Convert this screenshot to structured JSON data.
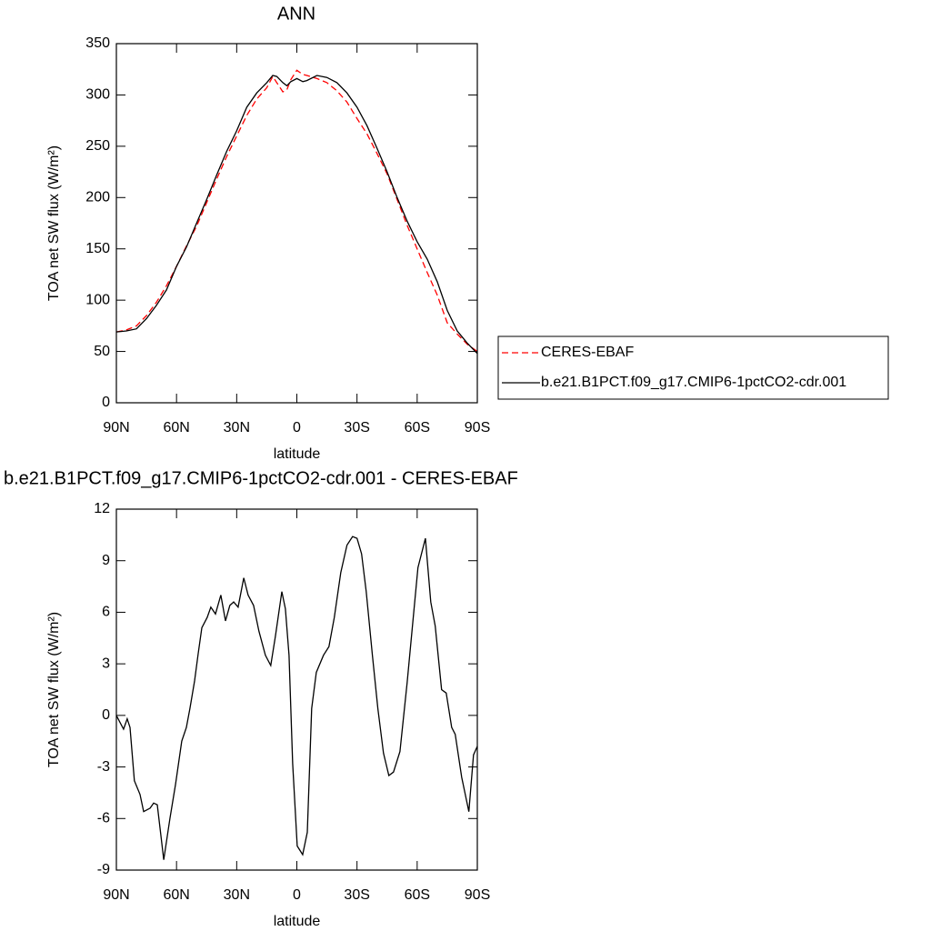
{
  "chart_data": [
    {
      "type": "line",
      "title": "ANN",
      "xlabel": "latitude",
      "ylabel": "TOA net SW flux (W/m²)",
      "x": [
        90,
        85,
        80,
        75,
        70,
        65,
        60,
        55,
        50,
        45,
        40,
        35,
        30,
        25,
        20,
        15,
        12,
        10,
        7,
        5,
        3,
        0,
        -3,
        -5,
        -10,
        -15,
        -20,
        -25,
        -30,
        -35,
        -40,
        -45,
        -50,
        -55,
        -60,
        -65,
        -70,
        -75,
        -80,
        -85,
        -90
      ],
      "series": [
        {
          "name": "CERES-EBAF",
          "color": "#ff0000",
          "linestyle": "dashed",
          "values": [
            69,
            71,
            75,
            85,
            98,
            114,
            133,
            153,
            172,
            195,
            218,
            240,
            260,
            280,
            296,
            307,
            318,
            312,
            303,
            305,
            315,
            324,
            320,
            319,
            316,
            312,
            304,
            293,
            277,
            262,
            243,
            223,
            198,
            173,
            150,
            127,
            105,
            78,
            67,
            57,
            50
          ]
        },
        {
          "name": "b.e21.B1PCT.f09_g17.CMIP6-1pctCO2-cdr.001",
          "color": "#000000",
          "linestyle": "solid",
          "values": [
            69,
            70,
            72,
            82,
            95,
            110,
            133,
            152,
            175,
            198,
            222,
            245,
            265,
            288,
            302,
            312,
            319,
            318,
            312,
            309,
            313,
            316,
            313,
            314,
            319,
            317,
            312,
            302,
            288,
            270,
            248,
            225,
            200,
            177,
            157,
            140,
            118,
            90,
            70,
            58,
            48
          ]
        }
      ],
      "xlim": [
        90,
        -90
      ],
      "xticks": [
        {
          "value": 90,
          "label": "90N"
        },
        {
          "value": 60,
          "label": "60N"
        },
        {
          "value": 30,
          "label": "30N"
        },
        0,
        {
          "value": -30,
          "label": "30S"
        },
        {
          "value": -60,
          "label": "60S"
        },
        {
          "value": -90,
          "label": "90S"
        }
      ],
      "ylim": [
        0,
        350
      ],
      "yticks": [
        0,
        50,
        100,
        150,
        200,
        250,
        300,
        350
      ],
      "legend": "right"
    },
    {
      "type": "line",
      "title": "b.e21.B1PCT.f09_g17.CMIP6-1pctCO2-cdr.001 - CERES-EBAF",
      "xlabel": "latitude",
      "ylabel": "TOA net SW flux (W/m²)",
      "x": [
        90,
        86.4,
        84.6,
        83.2,
        81,
        78.2,
        76.4,
        73.2,
        71.4,
        69.6,
        68.2,
        66.4,
        63.3,
        60.5,
        57.4,
        55.1,
        53.3,
        51,
        49.2,
        47.4,
        44.7,
        42.9,
        40.6,
        37.9,
        35.6,
        33.4,
        31.5,
        29.3,
        26.5,
        24.3,
        21.6,
        18.9,
        15.7,
        13,
        10.7,
        7.5,
        5.7,
        3.9,
        2.1,
        -0.2,
        -2.9,
        -5.2,
        -7.4,
        -9.7,
        -13.3,
        -16,
        -18.7,
        -21.9,
        -25,
        -27.8,
        -30,
        -32.3,
        -34.6,
        -37.7,
        -40.4,
        -43.2,
        -45.9,
        -48.2,
        -51.4,
        -55,
        -58.2,
        -60.4,
        -64.1,
        -66.8,
        -69,
        -72.2,
        -74.5,
        -77.2,
        -79,
        -82.2,
        -85.8,
        -88.1,
        -90
      ],
      "series": [
        {
          "name": "b.e21.B1PCT.f09_g17.CMIP6-1pctCO2-cdr.001 - CERES-EBAF",
          "color": "#000000",
          "linestyle": "solid",
          "values": [
            0,
            -0.8,
            -0.2,
            -0.7,
            -3.8,
            -4.6,
            -5.6,
            -5.4,
            -5.1,
            -5.2,
            -6.6,
            -8.4,
            -6,
            -4,
            -1.5,
            -0.7,
            0.4,
            2,
            3.6,
            5.1,
            5.7,
            6.3,
            5.9,
            7.0,
            5.5,
            6.4,
            6.6,
            6.3,
            8.0,
            7.0,
            6.4,
            4.9,
            3.5,
            2.9,
            4.6,
            7.2,
            6.2,
            3.5,
            -2.8,
            -7.6,
            -8.1,
            -6.8,
            0.4,
            2.5,
            3.5,
            4,
            5.7,
            8.3,
            9.9,
            10.4,
            10.3,
            9.4,
            7.2,
            3.5,
            0.4,
            -2.2,
            -3.5,
            -3.3,
            -2.1,
            1.9,
            5.9,
            8.6,
            10.3,
            6.6,
            5.2,
            1.5,
            1.3,
            -0.7,
            -1.1,
            -3.6,
            -5.6,
            -2.3,
            -1.8
          ]
        }
      ],
      "xlim": [
        90,
        -90
      ],
      "xticks": [
        {
          "value": 90,
          "label": "90N"
        },
        {
          "value": 60,
          "label": "60N"
        },
        {
          "value": 30,
          "label": "30N"
        },
        0,
        {
          "value": -30,
          "label": "30S"
        },
        {
          "value": -60,
          "label": "60S"
        },
        {
          "value": -90,
          "label": "90S"
        }
      ],
      "ylim": [
        -9,
        12
      ],
      "yticks": [
        -9,
        -6,
        -3,
        0,
        3,
        6,
        9,
        12
      ]
    }
  ]
}
